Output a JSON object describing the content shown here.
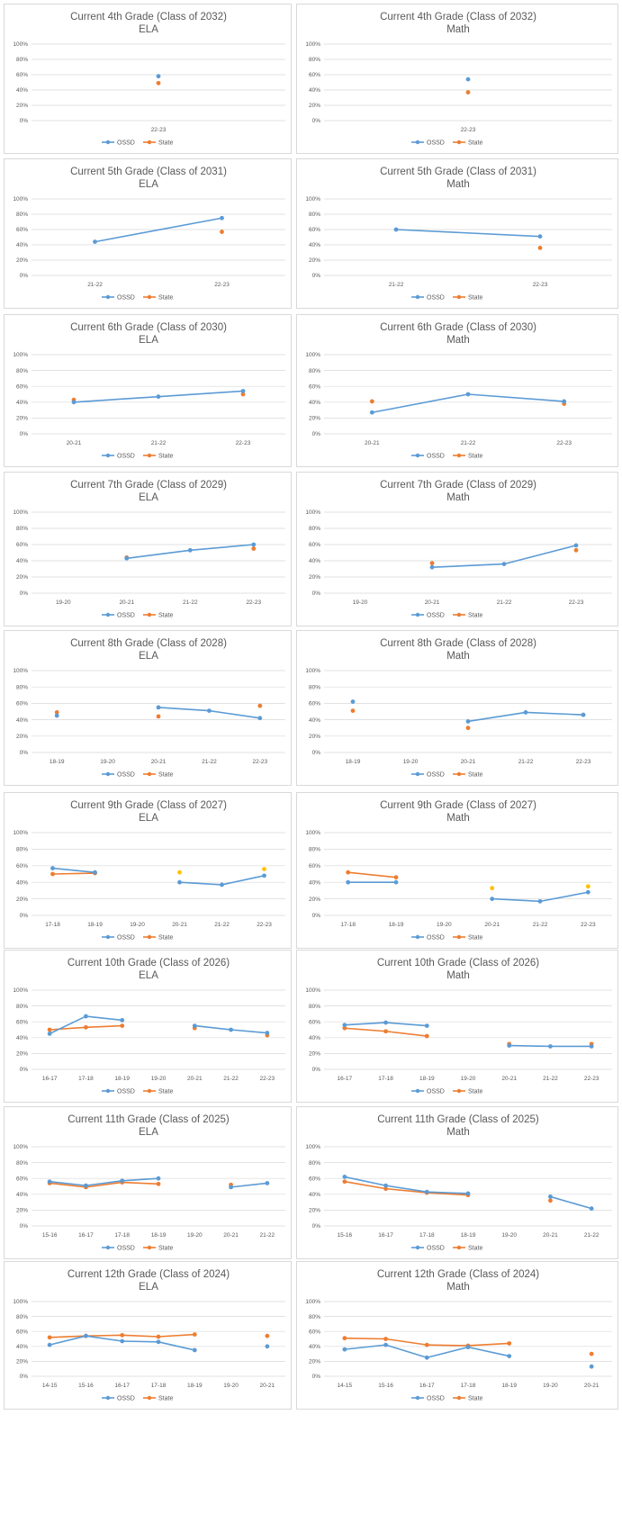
{
  "colors": {
    "ossd": "#5B9BD5",
    "state": "#ED7D31",
    "state_alt": "#FFC000",
    "grid": "#d9d9d9",
    "text": "#595959"
  },
  "legend": {
    "ossd": "OSSD",
    "state": "State"
  },
  "y_tick_labels": [
    "0%",
    "20%",
    "40%",
    "60%",
    "80%",
    "100%"
  ],
  "chart_data": [
    {
      "type": "line",
      "title": "Current 4th Grade (Class of 2032)",
      "subtitle": "ELA",
      "ylim": [
        0,
        100
      ],
      "grid": "horizontal",
      "legend_position": "bottom",
      "categories": [
        "22-23"
      ],
      "series": [
        {
          "name": "OSSD",
          "values": [
            58
          ]
        },
        {
          "name": "State",
          "values": [
            49
          ]
        }
      ]
    },
    {
      "type": "line",
      "title": "Current 4th Grade (Class of 2032)",
      "subtitle": "Math",
      "ylim": [
        0,
        100
      ],
      "grid": "horizontal",
      "legend_position": "bottom",
      "categories": [
        "22-23"
      ],
      "series": [
        {
          "name": "OSSD",
          "values": [
            54
          ]
        },
        {
          "name": "State",
          "values": [
            37
          ]
        }
      ]
    },
    {
      "type": "line",
      "title": "Current 5th Grade (Class of 2031)",
      "subtitle": "ELA",
      "ylim": [
        0,
        100
      ],
      "grid": "horizontal",
      "legend_position": "bottom",
      "categories": [
        "21-22",
        "22-23"
      ],
      "series": [
        {
          "name": "OSSD",
          "values": [
            44,
            75
          ]
        },
        {
          "name": "State",
          "values": [
            null,
            57
          ]
        }
      ]
    },
    {
      "type": "line",
      "title": "Current 5th Grade (Class of 2031)",
      "subtitle": "Math",
      "ylim": [
        0,
        100
      ],
      "grid": "horizontal",
      "legend_position": "bottom",
      "categories": [
        "21-22",
        "22-23"
      ],
      "series": [
        {
          "name": "OSSD",
          "values": [
            60,
            51
          ]
        },
        {
          "name": "State",
          "values": [
            null,
            36
          ]
        }
      ]
    },
    {
      "type": "line",
      "title": "Current 6th Grade (Class of 2030)",
      "subtitle": "ELA",
      "ylim": [
        0,
        100
      ],
      "grid": "horizontal",
      "legend_position": "bottom",
      "categories": [
        "20-21",
        "21-22",
        "22-23"
      ],
      "series": [
        {
          "name": "OSSD",
          "values": [
            40,
            47,
            54
          ]
        },
        {
          "name": "State",
          "values": [
            43,
            null,
            50
          ]
        }
      ]
    },
    {
      "type": "line",
      "title": "Current 6th Grade (Class of 2030)",
      "subtitle": "Math",
      "ylim": [
        0,
        100
      ],
      "grid": "horizontal",
      "legend_position": "bottom",
      "categories": [
        "20-21",
        "21-22",
        "22-23"
      ],
      "series": [
        {
          "name": "OSSD",
          "values": [
            27,
            50,
            41
          ]
        },
        {
          "name": "State",
          "values": [
            41,
            null,
            38
          ]
        }
      ]
    },
    {
      "type": "line",
      "title": "Current 7th Grade (Class of 2029)",
      "subtitle": "ELA",
      "ylim": [
        0,
        100
      ],
      "grid": "horizontal",
      "legend_position": "bottom",
      "categories": [
        "19-20",
        "20-21",
        "21-22",
        "22-23"
      ],
      "series": [
        {
          "name": "OSSD",
          "values": [
            null,
            43,
            53,
            60
          ]
        },
        {
          "name": "State",
          "values": [
            null,
            44,
            null,
            55
          ]
        }
      ]
    },
    {
      "type": "line",
      "title": "Current 7th Grade (Class of 2029)",
      "subtitle": "Math",
      "ylim": [
        0,
        100
      ],
      "grid": "horizontal",
      "legend_position": "bottom",
      "categories": [
        "19-20",
        "20-21",
        "21-22",
        "22-23"
      ],
      "series": [
        {
          "name": "OSSD",
          "values": [
            null,
            32,
            36,
            59
          ]
        },
        {
          "name": "State",
          "values": [
            null,
            37,
            null,
            53
          ]
        }
      ]
    },
    {
      "type": "line",
      "title": "Current 8th Grade (Class of 2028)",
      "subtitle": "ELA",
      "ylim": [
        0,
        100
      ],
      "grid": "horizontal",
      "legend_position": "bottom",
      "categories": [
        "18-19",
        "19-20",
        "20-21",
        "21-22",
        "22-23"
      ],
      "series": [
        {
          "name": "OSSD",
          "values": [
            45,
            null,
            55,
            51,
            42
          ]
        },
        {
          "name": "State",
          "values": [
            49,
            null,
            44,
            null,
            57
          ]
        }
      ]
    },
    {
      "type": "line",
      "title": "Current 8th Grade (Class of 2028)",
      "subtitle": "Math",
      "ylim": [
        0,
        100
      ],
      "grid": "horizontal",
      "legend_position": "bottom",
      "categories": [
        "18-19",
        "19-20",
        "20-21",
        "21-22",
        "22-23"
      ],
      "series": [
        {
          "name": "OSSD",
          "values": [
            62,
            null,
            38,
            49,
            46
          ]
        },
        {
          "name": "State",
          "values": [
            51,
            null,
            30,
            null,
            46
          ]
        }
      ]
    },
    {
      "type": "line",
      "title": "Current 9th Grade (Class of 2027)",
      "subtitle": "ELA",
      "ylim": [
        0,
        100
      ],
      "grid": "horizontal",
      "legend_position": "bottom",
      "categories": [
        "17-18",
        "18-19",
        "19-20",
        "20-21",
        "21-22",
        "22-23"
      ],
      "series": [
        {
          "name": "OSSD",
          "values": [
            57,
            52,
            null,
            40,
            37,
            48
          ]
        },
        {
          "name": "State",
          "values": [
            50,
            51,
            null,
            52,
            null,
            56
          ]
        }
      ]
    },
    {
      "type": "line",
      "title": "Current 9th Grade (Class of 2027)",
      "subtitle": "Math",
      "ylim": [
        0,
        100
      ],
      "grid": "horizontal",
      "legend_position": "bottom",
      "categories": [
        "17-18",
        "18-19",
        "19-20",
        "20-21",
        "21-22",
        "22-23"
      ],
      "series": [
        {
          "name": "OSSD",
          "values": [
            40,
            40,
            null,
            20,
            17,
            28
          ]
        },
        {
          "name": "State",
          "values": [
            52,
            46,
            null,
            33,
            null,
            35
          ]
        }
      ]
    },
    {
      "type": "line",
      "title": "Current 10th Grade (Class of 2026)",
      "subtitle": "ELA",
      "ylim": [
        0,
        100
      ],
      "grid": "horizontal",
      "legend_position": "bottom",
      "categories": [
        "16-17",
        "17-18",
        "18-19",
        "19-20",
        "20-21",
        "21-22",
        "22-23"
      ],
      "series": [
        {
          "name": "OSSD",
          "values": [
            45,
            67,
            62,
            null,
            55,
            50,
            46
          ]
        },
        {
          "name": "State",
          "values": [
            50,
            53,
            55,
            null,
            52,
            null,
            43
          ]
        }
      ]
    },
    {
      "type": "line",
      "title": "Current 10th Grade (Class of 2026)",
      "subtitle": "Math",
      "ylim": [
        0,
        100
      ],
      "grid": "horizontal",
      "legend_position": "bottom",
      "categories": [
        "16-17",
        "17-18",
        "18-19",
        "19-20",
        "20-21",
        "21-22",
        "22-23"
      ],
      "series": [
        {
          "name": "OSSD",
          "values": [
            56,
            59,
            55,
            null,
            30,
            29,
            29
          ]
        },
        {
          "name": "State",
          "values": [
            52,
            48,
            42,
            null,
            32,
            null,
            32
          ]
        }
      ]
    },
    {
      "type": "line",
      "title": "Current 11th Grade (Class of 2025)",
      "subtitle": "ELA",
      "ylim": [
        0,
        100
      ],
      "grid": "horizontal",
      "legend_position": "bottom",
      "categories": [
        "15-16",
        "16-17",
        "17-18",
        "18-19",
        "19-20",
        "20-21",
        "21-22"
      ],
      "series": [
        {
          "name": "OSSD",
          "values": [
            56,
            51,
            57,
            60,
            null,
            49,
            54
          ]
        },
        {
          "name": "State",
          "values": [
            54,
            49,
            55,
            53,
            null,
            52,
            null
          ]
        }
      ]
    },
    {
      "type": "line",
      "title": "Current 11th Grade (Class of 2025)",
      "subtitle": "Math",
      "ylim": [
        0,
        100
      ],
      "grid": "horizontal",
      "legend_position": "bottom",
      "categories": [
        "15-16",
        "16-17",
        "17-18",
        "18-19",
        "19-20",
        "20-21",
        "21-22"
      ],
      "series": [
        {
          "name": "OSSD",
          "values": [
            62,
            51,
            43,
            41,
            null,
            37,
            22
          ]
        },
        {
          "name": "State",
          "values": [
            56,
            47,
            42,
            39,
            null,
            32,
            null
          ]
        }
      ]
    },
    {
      "type": "line",
      "title": "Current 12th Grade (Class of 2024)",
      "subtitle": "ELA",
      "ylim": [
        0,
        100
      ],
      "grid": "horizontal",
      "legend_position": "bottom",
      "categories": [
        "14-15",
        "15-16",
        "16-17",
        "17-18",
        "18-19",
        "19-20",
        "20-21"
      ],
      "series": [
        {
          "name": "OSSD",
          "values": [
            42,
            54,
            47,
            46,
            35,
            null,
            40
          ]
        },
        {
          "name": "State",
          "values": [
            52,
            54,
            55,
            53,
            56,
            null,
            54
          ]
        }
      ]
    },
    {
      "type": "line",
      "title": "Current 12th Grade (Class of 2024)",
      "subtitle": "Math",
      "ylim": [
        0,
        100
      ],
      "grid": "horizontal",
      "legend_position": "bottom",
      "categories": [
        "14-15",
        "15-16",
        "16-17",
        "17-18",
        "18-19",
        "19-20",
        "20-21"
      ],
      "series": [
        {
          "name": "OSSD",
          "values": [
            36,
            42,
            25,
            39,
            27,
            null,
            13
          ]
        },
        {
          "name": "State",
          "values": [
            51,
            50,
            42,
            41,
            44,
            null,
            30
          ]
        }
      ]
    }
  ]
}
